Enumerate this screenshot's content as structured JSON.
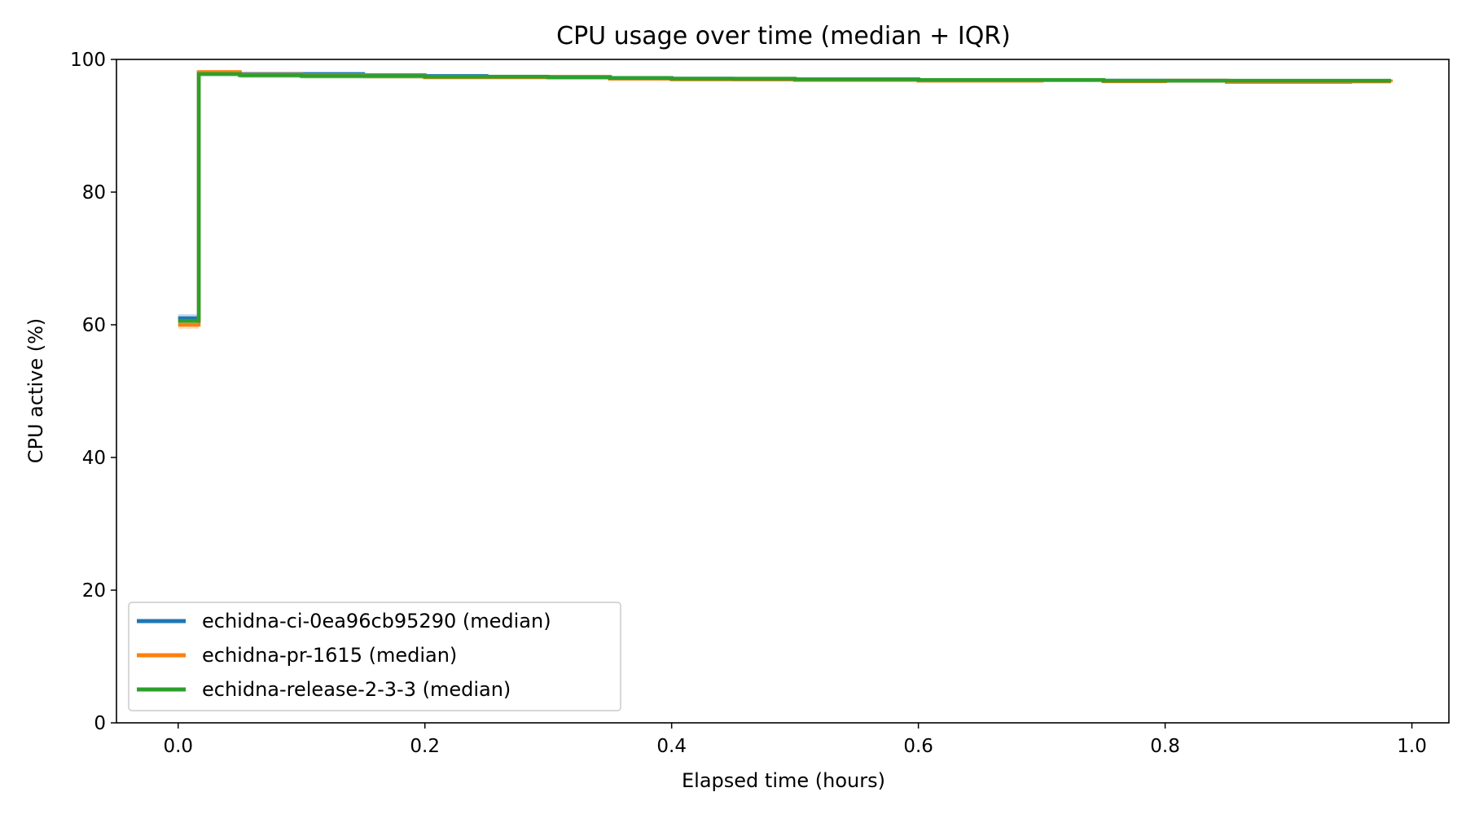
{
  "chart_data": {
    "type": "line",
    "step": true,
    "title": "CPU usage over time (median + IQR)",
    "xlabel": "Elapsed time (hours)",
    "ylabel": "CPU active (%)",
    "xlim": [
      -0.05,
      1.03
    ],
    "ylim": [
      0,
      100
    ],
    "xticks": [
      "0.0",
      "0.2",
      "0.4",
      "0.6",
      "0.8",
      "1.0"
    ],
    "yticks": [
      "0",
      "20",
      "40",
      "60",
      "80",
      "100"
    ],
    "grid": false,
    "legend_position": "lower-left",
    "series": [
      {
        "name": "echidna-ci-0ea96cb95290 (median)",
        "color": "#1f77b4",
        "x": [
          0.0,
          0.0167,
          0.05,
          0.1,
          0.15,
          0.2,
          0.25,
          0.3,
          0.35,
          0.4,
          0.45,
          0.5,
          0.55,
          0.6,
          0.65,
          0.7,
          0.75,
          0.8,
          0.85,
          0.9,
          0.95,
          0.983
        ],
        "y": [
          61.0,
          98.0,
          97.8,
          97.8,
          97.6,
          97.5,
          97.4,
          97.3,
          97.2,
          97.1,
          97.0,
          97.0,
          97.0,
          96.9,
          96.9,
          96.9,
          96.8,
          96.8,
          96.7,
          96.7,
          96.7,
          96.7
        ],
        "iqr_low": [
          60.3,
          97.6,
          97.4,
          97.4,
          97.3,
          97.2,
          97.1,
          97.0,
          96.9,
          96.8,
          96.7,
          96.7,
          96.7,
          96.6,
          96.6,
          96.6,
          96.5,
          96.5,
          96.4,
          96.4,
          96.4,
          96.4
        ],
        "iqr_high": [
          61.6,
          98.3,
          98.1,
          98.1,
          97.9,
          97.8,
          97.7,
          97.6,
          97.5,
          97.4,
          97.3,
          97.3,
          97.3,
          97.2,
          97.2,
          97.2,
          97.1,
          97.1,
          97.0,
          97.0,
          97.0,
          97.0
        ]
      },
      {
        "name": "echidna-pr-1615 (median)",
        "color": "#ff7f0e",
        "x": [
          0.0,
          0.0167,
          0.05,
          0.1,
          0.15,
          0.2,
          0.25,
          0.3,
          0.35,
          0.4,
          0.45,
          0.5,
          0.55,
          0.6,
          0.65,
          0.7,
          0.75,
          0.8,
          0.85,
          0.9,
          0.95,
          0.983
        ],
        "y": [
          60.0,
          98.1,
          97.7,
          97.6,
          97.5,
          97.3,
          97.3,
          97.4,
          97.1,
          97.0,
          97.0,
          96.9,
          96.9,
          96.8,
          96.8,
          96.9,
          96.7,
          96.8,
          96.6,
          96.6,
          96.7,
          96.6
        ],
        "iqr_low": [
          59.4,
          97.7,
          97.3,
          97.2,
          97.1,
          97.0,
          97.0,
          97.1,
          96.8,
          96.7,
          96.7,
          96.6,
          96.6,
          96.5,
          96.5,
          96.6,
          96.4,
          96.5,
          96.3,
          96.3,
          96.4,
          96.3
        ],
        "iqr_high": [
          60.7,
          98.4,
          98.0,
          97.9,
          97.8,
          97.6,
          97.6,
          97.7,
          97.4,
          97.3,
          97.3,
          97.2,
          97.2,
          97.1,
          97.1,
          97.2,
          97.0,
          97.1,
          96.9,
          96.9,
          97.0,
          96.9
        ]
      },
      {
        "name": "echidna-release-2-3-3 (median)",
        "color": "#2ca02c",
        "x": [
          0.0,
          0.0167,
          0.05,
          0.1,
          0.15,
          0.2,
          0.25,
          0.3,
          0.35,
          0.4,
          0.45,
          0.5,
          0.55,
          0.6,
          0.65,
          0.7,
          0.75,
          0.8,
          0.85,
          0.9,
          0.95,
          0.983
        ],
        "y": [
          60.6,
          97.8,
          97.6,
          97.5,
          97.5,
          97.4,
          97.4,
          97.3,
          97.2,
          97.1,
          97.1,
          97.0,
          97.0,
          96.9,
          96.9,
          96.9,
          96.8,
          96.8,
          96.8,
          96.8,
          96.8,
          96.8
        ],
        "iqr_low": [
          60.0,
          97.4,
          97.2,
          97.1,
          97.1,
          97.1,
          97.1,
          97.0,
          96.9,
          96.8,
          96.8,
          96.7,
          96.7,
          96.6,
          96.6,
          96.6,
          96.5,
          96.5,
          96.5,
          96.5,
          96.5,
          96.5
        ],
        "iqr_high": [
          61.2,
          98.1,
          97.9,
          97.8,
          97.8,
          97.7,
          97.7,
          97.6,
          97.5,
          97.4,
          97.4,
          97.3,
          97.3,
          97.2,
          97.2,
          97.2,
          97.1,
          97.1,
          97.1,
          97.1,
          97.1,
          97.1
        ]
      }
    ]
  }
}
